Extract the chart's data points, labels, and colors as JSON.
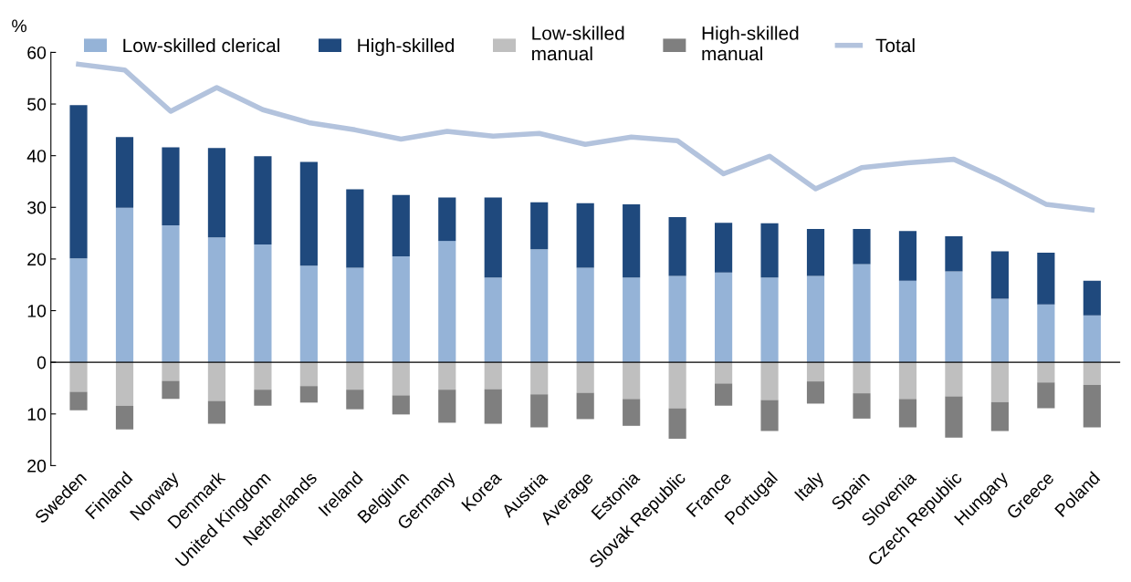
{
  "chart_data": {
    "type": "bar",
    "stacked": true,
    "ylabel": "%",
    "legend": "top",
    "categories": [
      "Sweden",
      "Finland",
      "Norway",
      "Denmark",
      "United Kingdom",
      "Netherlands",
      "Ireland",
      "Belgium",
      "Germany",
      "Korea",
      "Austria",
      "Average",
      "Estonia",
      "Slovak Republic",
      "France",
      "Portugal",
      "Italy",
      "Spain",
      "Slovenia",
      "Czech Republic",
      "Hungary",
      "Greece",
      "Poland"
    ],
    "series": [
      {
        "name": "Low-skilled clerical",
        "color": "#95b3d7",
        "values": [
          20.1,
          29.9,
          26.5,
          24.2,
          22.8,
          18.7,
          18.3,
          20.5,
          23.5,
          16.4,
          21.9,
          18.3,
          16.4,
          16.7,
          17.4,
          16.4,
          16.7,
          19.0,
          15.8,
          17.6,
          12.3,
          11.2,
          9.1
        ]
      },
      {
        "name": "High-skilled",
        "color": "#1f497d",
        "values": [
          29.7,
          13.7,
          15.1,
          17.3,
          17.1,
          20.1,
          15.2,
          11.9,
          8.4,
          15.5,
          9.1,
          12.5,
          14.2,
          11.4,
          9.6,
          10.5,
          9.1,
          6.8,
          9.6,
          6.8,
          9.2,
          10.0,
          6.7
        ]
      },
      {
        "name": "Low-skilled\nmanual",
        "color": "#bfbfbf",
        "values": [
          -5.7,
          -8.4,
          -3.6,
          -7.5,
          -5.3,
          -4.6,
          -5.3,
          -6.4,
          -5.3,
          -5.2,
          -6.2,
          -5.9,
          -7.1,
          -8.9,
          -4.1,
          -7.3,
          -3.7,
          -6.0,
          -7.1,
          -6.6,
          -7.7,
          -3.9,
          -4.4
        ]
      },
      {
        "name": "High-skilled\nmanual",
        "color": "#7f7f7f",
        "values": [
          -3.6,
          -4.6,
          -3.5,
          -4.4,
          -3.1,
          -3.2,
          -3.8,
          -3.7,
          -6.4,
          -6.7,
          -6.4,
          -5.1,
          -5.2,
          -5.9,
          -4.3,
          -6.0,
          -4.3,
          -4.9,
          -5.5,
          -8.0,
          -5.6,
          -5.0,
          -8.2
        ]
      },
      {
        "name": "Total",
        "type": "line",
        "color": "#b3c3dd",
        "values": [
          57.7,
          56.6,
          48.6,
          53.2,
          48.9,
          46.4,
          45.0,
          43.2,
          44.7,
          43.8,
          44.3,
          42.2,
          43.6,
          42.9,
          36.5,
          39.9,
          33.6,
          37.7,
          38.6,
          39.3,
          35.2,
          30.6,
          29.5
        ]
      }
    ],
    "ylim": [
      -20,
      60
    ],
    "yticks": [
      {
        "value": -20,
        "label": "20"
      },
      {
        "value": -10,
        "label": "10"
      },
      0,
      10,
      20,
      30,
      40,
      50,
      60
    ]
  }
}
